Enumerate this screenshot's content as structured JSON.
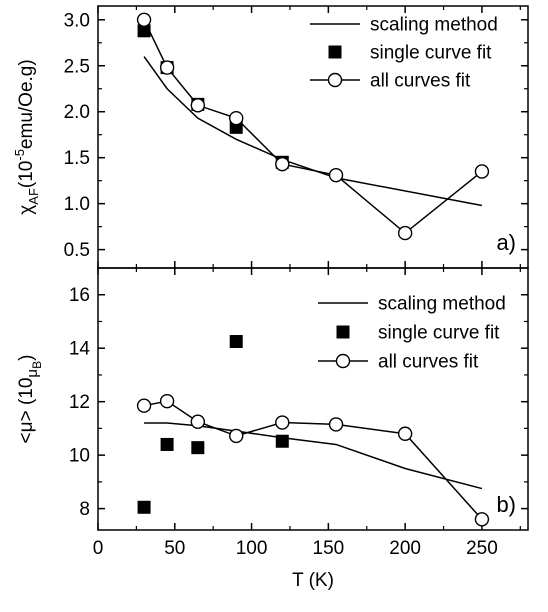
{
  "chart_data": [
    {
      "type": "line",
      "panel_label": "a)",
      "ylabel": "χAF(10-5emu/Oe.g)",
      "ylabel_parts": {
        "symbol": "χ",
        "sub": "AF",
        "open": "(10",
        "sup": "-5",
        "rest": "emu/Oe.g)"
      },
      "xlim": [
        0,
        280
      ],
      "ylim": [
        0.3,
        3.15
      ],
      "yticks": [
        0.5,
        1.0,
        1.5,
        2.0,
        2.5,
        3.0
      ],
      "ytick_labels": [
        "0.5",
        "1.0",
        "1.5",
        "2.0",
        "2.5",
        "3.0"
      ],
      "legend_position": "top-right",
      "series": [
        {
          "name": "scaling method",
          "style": "line",
          "x": [
            30,
            45,
            65,
            90,
            120,
            155,
            250
          ],
          "y": [
            2.6,
            2.25,
            1.93,
            1.7,
            1.48,
            1.28,
            0.98
          ]
        },
        {
          "name": "single curve fit",
          "style": "square",
          "x": [
            30,
            45,
            65,
            90,
            120
          ],
          "y": [
            2.88,
            2.48,
            2.08,
            1.83,
            1.45
          ]
        },
        {
          "name": "all curves fit",
          "style": "line-circle",
          "x": [
            30,
            45,
            65,
            90,
            120,
            155,
            200,
            250
          ],
          "y": [
            3.0,
            2.48,
            2.07,
            1.93,
            1.43,
            1.31,
            0.68,
            1.35
          ]
        }
      ]
    },
    {
      "type": "line",
      "panel_label": "b)",
      "ylabel": "<μ> (10μB)",
      "ylabel_parts": {
        "open": "<μ> (10",
        "mu": "μ",
        "sub": "B",
        "close": ")"
      },
      "xlabel": "T (K)",
      "xlim": [
        0,
        280
      ],
      "ylim": [
        7.2,
        17.0
      ],
      "xticks": [
        0,
        50,
        100,
        150,
        200,
        250
      ],
      "xtick_labels": [
        "0",
        "50",
        "100",
        "150",
        "200",
        "250"
      ],
      "yticks": [
        8,
        10,
        12,
        14,
        16
      ],
      "ytick_labels": [
        "8",
        "10",
        "12",
        "14",
        "16"
      ],
      "legend_position": "top-right",
      "series": [
        {
          "name": "scaling method",
          "style": "line",
          "x": [
            30,
            45,
            65,
            90,
            120,
            155,
            200,
            250
          ],
          "y": [
            11.2,
            11.2,
            11.1,
            10.9,
            10.65,
            10.4,
            9.5,
            8.75
          ]
        },
        {
          "name": "single curve fit",
          "style": "square",
          "x": [
            30,
            45,
            65,
            90,
            120
          ],
          "y": [
            8.05,
            10.4,
            10.28,
            14.25,
            10.52
          ]
        },
        {
          "name": "all curves fit",
          "style": "line-circle",
          "x": [
            30,
            45,
            65,
            90,
            120,
            155,
            200,
            250
          ],
          "y": [
            11.85,
            12.02,
            11.25,
            10.72,
            11.22,
            11.15,
            10.8,
            7.6
          ]
        }
      ]
    }
  ]
}
